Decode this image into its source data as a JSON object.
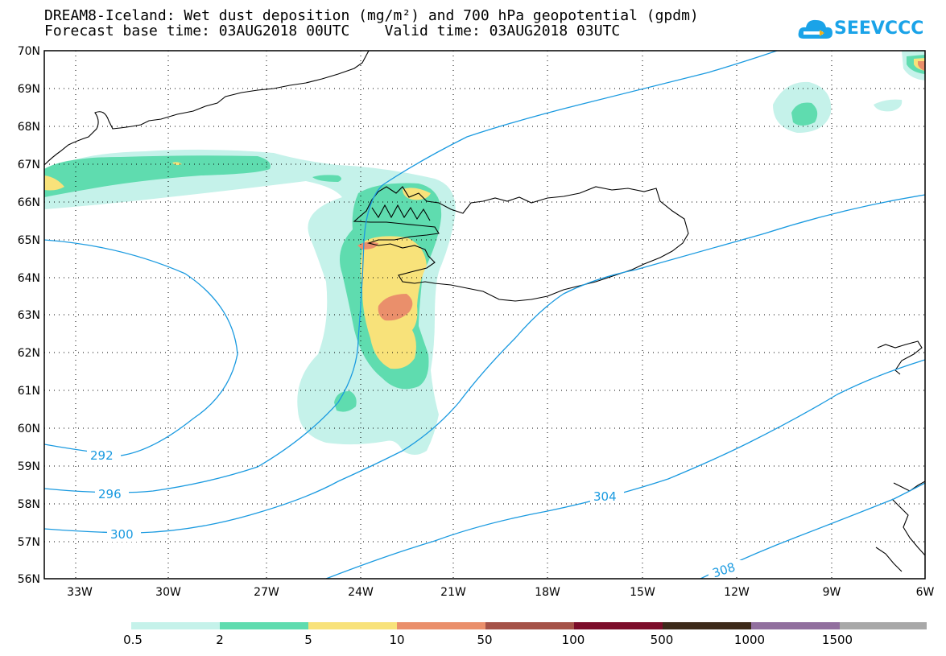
{
  "title": {
    "line1": "DREAM8-Iceland: Wet dust deposition (mg/m²) and 700 hPa geopotential (gpdm)",
    "line2": "Forecast base time: 03AUG2018 00UTC    Valid time: 03AUG2018 03UTC"
  },
  "logo": {
    "text": "SEEVCCC",
    "icon": "cloud-icon",
    "color": "#1aa3e8"
  },
  "map": {
    "lat_labels": [
      "70N",
      "69N",
      "68N",
      "67N",
      "66N",
      "65N",
      "64N",
      "63N",
      "62N",
      "61N",
      "60N",
      "59N",
      "58N",
      "57N",
      "56N"
    ],
    "lon_labels": [
      "33W",
      "30W",
      "27W",
      "24W",
      "21W",
      "18W",
      "15W",
      "12W",
      "9W",
      "6W"
    ],
    "contour_labels": [
      "292",
      "296",
      "300",
      "304",
      "308"
    ],
    "contour_color": "#1a9ae0",
    "grid": "dotted"
  },
  "legend": {
    "labels": [
      "0.5",
      "2",
      "5",
      "10",
      "50",
      "100",
      "500",
      "1000",
      "1500"
    ],
    "colors": [
      "#c5f2ea",
      "#5fdcaf",
      "#f8e27a",
      "#ea8f6b",
      "#a55248",
      "#7c0d2a",
      "#3d2a1a",
      "#916f9e",
      "#a8a8a8"
    ]
  }
}
